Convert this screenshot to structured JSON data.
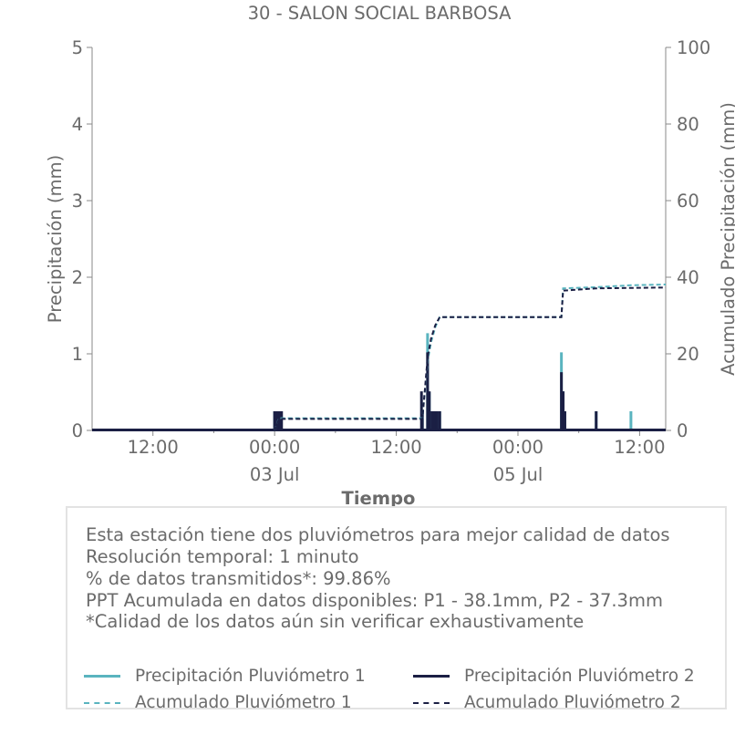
{
  "chart_data": {
    "type": "line",
    "title": "30 - SALON SOCIAL BARBOSA",
    "xlabel": "Tiempo",
    "ylabel": "Precipitación (mm)",
    "ylabel_right": "Acumulado Precipitación (mm)",
    "x_unit": "hours from 2024-07-01 18:00 (dates not shown; day labels 03 Jul / 05 Jul)",
    "xlim_hours": [
      0,
      66
    ],
    "ylim": [
      0,
      5
    ],
    "ylim_right": [
      0,
      100
    ],
    "yticks": [
      "0",
      "1",
      "2",
      "3",
      "4",
      "5"
    ],
    "yticks_right": [
      "0",
      "20",
      "40",
      "60",
      "80",
      "100"
    ],
    "xticks": [
      {
        "hour": 7,
        "label": "12:00",
        "date": ""
      },
      {
        "hour": 21,
        "label": "00:00",
        "date": "03 Jul"
      },
      {
        "hour": 35,
        "label": "12:00",
        "date": ""
      },
      {
        "hour": 49,
        "label": "00:00",
        "date": "05 Jul"
      },
      {
        "hour": 63,
        "label": "12:00",
        "date": ""
      }
    ],
    "series": [
      {
        "name": "Precipitación Pluviómetro 1",
        "kind": "bars",
        "color": "#5ab4bf",
        "points": [
          [
            21.0,
            0.25
          ],
          [
            21.2,
            0.25
          ],
          [
            21.4,
            0.25
          ],
          [
            21.6,
            0.25
          ],
          [
            38.0,
            0.25
          ],
          [
            38.6,
            1.27
          ],
          [
            38.8,
            0.5
          ],
          [
            39.1,
            0.25
          ],
          [
            39.4,
            0.25
          ],
          [
            39.7,
            0.25
          ],
          [
            40.0,
            0.25
          ],
          [
            54.0,
            1.02
          ],
          [
            54.2,
            0.51
          ],
          [
            54.4,
            0.25
          ],
          [
            58.0,
            0.25
          ],
          [
            62.0,
            0.25
          ]
        ]
      },
      {
        "name": "Precipitación Pluviómetro 2",
        "kind": "bars",
        "color": "#1b1f44",
        "points": [
          [
            21.0,
            0.25
          ],
          [
            21.3,
            0.25
          ],
          [
            21.6,
            0.25
          ],
          [
            21.8,
            0.25
          ],
          [
            37.9,
            0.51
          ],
          [
            38.0,
            0.25
          ],
          [
            38.6,
            1.02
          ],
          [
            38.8,
            0.51
          ],
          [
            39.1,
            0.25
          ],
          [
            39.4,
            0.25
          ],
          [
            39.7,
            0.25
          ],
          [
            40.0,
            0.25
          ],
          [
            54.0,
            0.76
          ],
          [
            54.2,
            0.51
          ],
          [
            54.4,
            0.25
          ],
          [
            58.0,
            0.25
          ]
        ]
      },
      {
        "name": "Acumulado Pluviómetro 1",
        "kind": "cumulative",
        "color": "#5ab4bf",
        "points": [
          [
            0,
            0
          ],
          [
            21,
            0
          ],
          [
            21.5,
            3.2
          ],
          [
            38,
            3.2
          ],
          [
            38.6,
            18
          ],
          [
            39,
            23
          ],
          [
            39.5,
            27
          ],
          [
            40,
            29.6
          ],
          [
            54,
            29.6
          ],
          [
            54.2,
            37.1
          ],
          [
            58,
            37.4
          ],
          [
            62,
            37.9
          ],
          [
            66,
            38.1
          ]
        ]
      },
      {
        "name": "Acumulado Pluviómetro 2",
        "kind": "cumulative",
        "color": "#1b1f44",
        "points": [
          [
            0,
            0
          ],
          [
            21,
            0
          ],
          [
            21.5,
            3.0
          ],
          [
            38,
            3.0
          ],
          [
            38.6,
            19
          ],
          [
            39,
            24
          ],
          [
            39.5,
            27.5
          ],
          [
            40,
            29.6
          ],
          [
            54,
            29.6
          ],
          [
            54.2,
            36.5
          ],
          [
            58,
            37.1
          ],
          [
            66,
            37.3
          ]
        ]
      }
    ],
    "grid": false
  },
  "info": {
    "lines": [
      "Esta estación tiene dos pluviómetros para mejor calidad de datos",
      "Resolución temporal: 1 minuto",
      "% de datos transmitidos*: 99.86%",
      "PPT Acumulada en datos disponibles: P1 - 38.1mm, P2 - 37.3mm",
      "*Calidad de los datos aún sin verificar exhaustivamente"
    ]
  },
  "legend": [
    {
      "label": "Precipitación Pluviómetro 1",
      "color": "#5ab4bf",
      "style": "solid"
    },
    {
      "label": "Precipitación Pluviómetro 2",
      "color": "#1b1f44",
      "style": "solid"
    },
    {
      "label": "Acumulado Pluviómetro 1",
      "color": "#5ab4bf",
      "style": "dashed"
    },
    {
      "label": "Acumulado Pluviómetro 2",
      "color": "#1b1f44",
      "style": "dashed"
    }
  ]
}
